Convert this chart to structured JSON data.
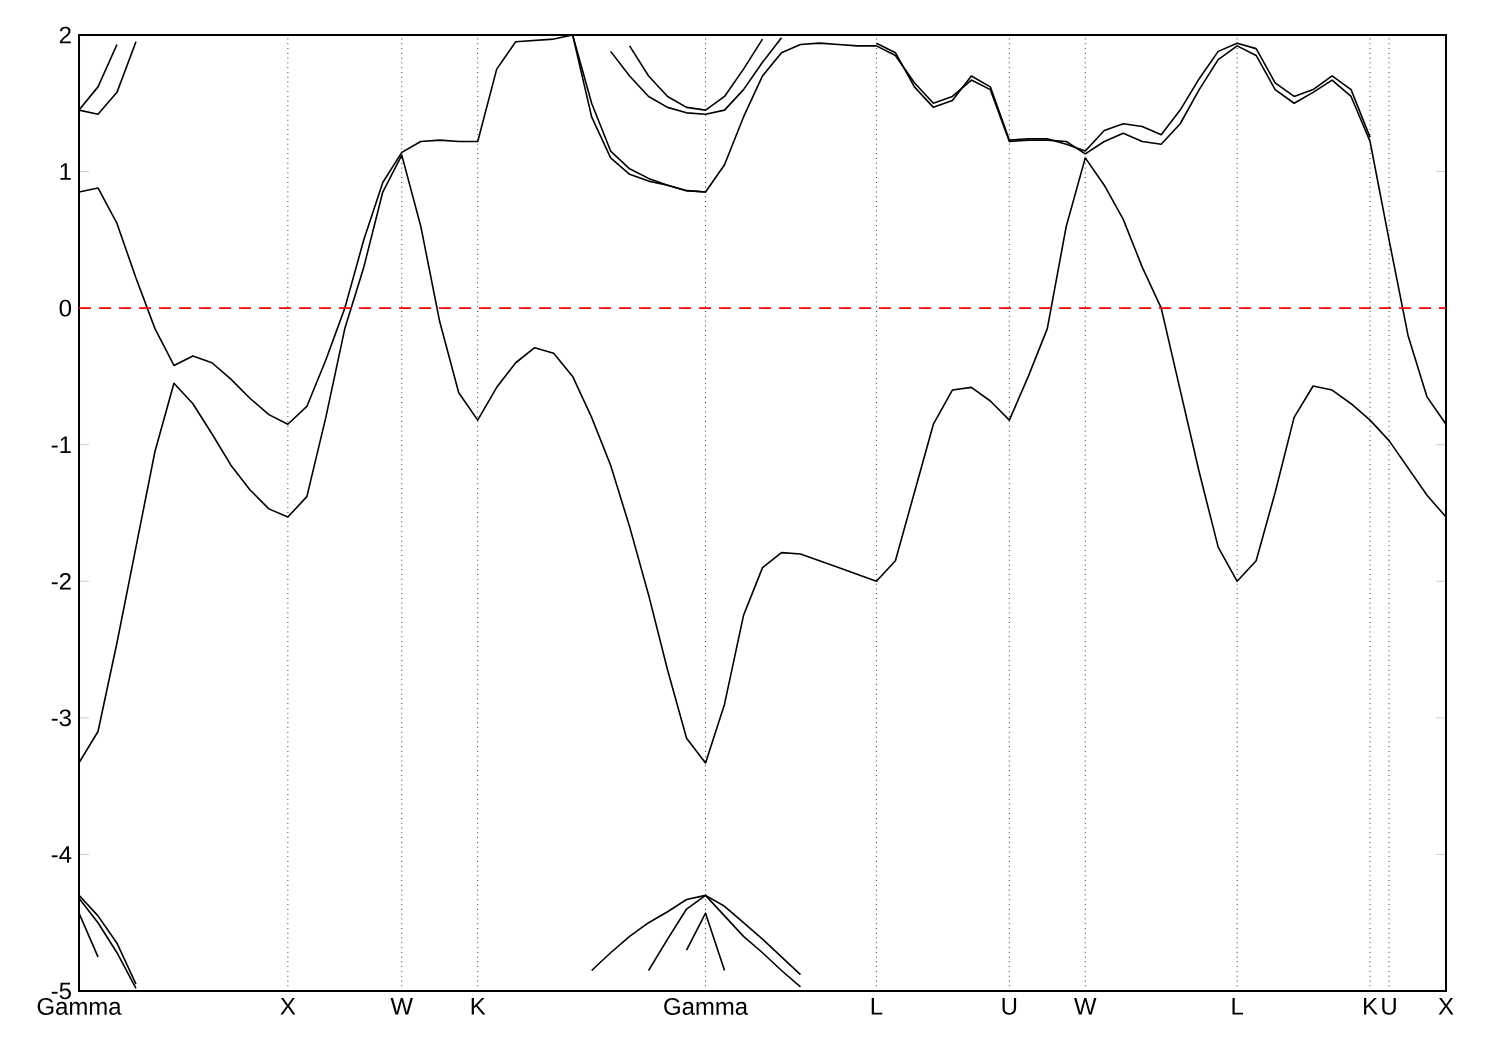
{
  "chart_data": {
    "type": "line",
    "ylim": [
      -5,
      2
    ],
    "categories": [
      "Gamma",
      null,
      null,
      null,
      null,
      null,
      null,
      null,
      null,
      null,
      null,
      "X",
      null,
      null,
      null,
      null,
      null,
      "W",
      null,
      null,
      null,
      "K",
      null,
      null,
      null,
      null,
      null,
      null,
      null,
      null,
      null,
      null,
      null,
      "Gamma",
      null,
      null,
      null,
      null,
      null,
      null,
      null,
      null,
      "L",
      null,
      null,
      null,
      null,
      null,
      null,
      "U",
      null,
      null,
      null,
      "W",
      null,
      null,
      null,
      null,
      null,
      null,
      null,
      "L",
      null,
      null,
      null,
      null,
      null,
      null,
      "K",
      "U",
      null,
      null,
      "X"
    ],
    "yticks": [
      -5,
      -4,
      -3,
      -2,
      -1,
      0,
      1,
      2
    ],
    "grid": "x",
    "ref_lines": [
      {
        "axis": "y",
        "value": 0,
        "color": "#ff0000",
        "line_style": "dashed"
      }
    ],
    "series": [
      {
        "color": "#000000",
        "values": [
          -3.33,
          -3.1,
          -2.45,
          -1.75,
          -1.05,
          -0.55,
          -0.7,
          -0.92,
          -1.15,
          -1.33,
          -1.47,
          -1.53,
          -1.38,
          -0.8,
          -0.15,
          0.3,
          0.85,
          1.12,
          0.6,
          -0.1,
          -0.62,
          -0.82,
          -0.58,
          -0.4,
          -0.29,
          -0.33,
          -0.5,
          -0.8,
          -1.15,
          -1.6,
          -2.1,
          -2.65,
          -3.15,
          -3.33,
          -2.9,
          -2.25,
          -1.9,
          -1.79,
          -1.8,
          -1.85,
          -1.9,
          -1.95,
          -2.0,
          -1.85,
          -1.35,
          -0.85,
          -0.6,
          -0.58,
          -0.68,
          -0.82,
          -0.5,
          -0.15,
          0.6,
          1.1,
          0.9,
          0.65,
          0.3,
          0.0,
          -0.6,
          -1.2,
          -1.75,
          -2.0,
          -1.85,
          -1.35,
          -0.8,
          -0.57,
          -0.6,
          -0.7,
          -0.82,
          -0.97,
          -1.17,
          -1.37,
          -1.53
        ]
      },
      {
        "color": "#000000",
        "values": [
          0.85,
          0.88,
          0.62,
          0.22,
          -0.15,
          -0.42,
          -0.35,
          -0.4,
          -0.52,
          -0.66,
          -0.78,
          -0.85,
          -0.72,
          -0.38,
          0.0,
          0.5,
          0.92,
          1.14,
          1.22,
          1.23,
          1.22,
          1.22,
          1.75,
          1.95,
          1.96,
          1.97,
          2.0,
          1.4,
          1.1,
          0.98,
          0.93,
          0.9,
          0.86,
          0.85,
          1.05,
          1.4,
          1.7,
          1.87,
          1.93,
          1.94,
          1.93,
          1.92,
          1.92,
          1.85,
          1.65,
          1.5,
          1.55,
          1.67,
          1.6,
          1.22,
          1.23,
          1.23,
          1.22,
          1.13,
          1.22,
          1.28,
          1.22,
          1.2,
          1.35,
          1.6,
          1.82,
          1.92,
          1.85,
          1.6,
          1.5,
          1.58,
          1.67,
          1.55,
          1.22,
          0.5,
          -0.2,
          -0.65,
          -0.85
        ]
      },
      {
        "color": "#000000",
        "values": [
          null,
          null,
          null,
          null,
          null,
          null,
          null,
          null,
          null,
          null,
          null,
          null,
          null,
          null,
          null,
          null,
          null,
          null,
          null,
          null,
          null,
          null,
          null,
          null,
          null,
          null,
          null,
          null,
          null,
          null,
          null,
          null,
          null,
          null,
          null,
          null,
          null,
          null,
          null,
          null,
          null,
          null,
          1.94,
          1.87,
          1.62,
          1.47,
          1.52,
          1.7,
          1.62,
          1.23,
          1.24,
          1.24,
          1.2,
          1.15,
          1.3,
          1.35,
          1.33,
          1.27,
          1.45,
          1.68,
          1.88,
          1.94,
          1.9,
          1.65,
          1.55,
          1.6,
          1.7,
          1.6,
          1.25,
          null,
          null,
          null,
          null
        ]
      },
      {
        "color": "#000000",
        "values": [
          1.45,
          1.62,
          1.93,
          null,
          null,
          null,
          null,
          null,
          null,
          null,
          null,
          null,
          null,
          null,
          null,
          null,
          null,
          null,
          null,
          null,
          null,
          null,
          null,
          null,
          null,
          null,
          null,
          null,
          null,
          null,
          null,
          null,
          null,
          null,
          null,
          null,
          null,
          null,
          null,
          null,
          null,
          null,
          null,
          null,
          null,
          null,
          null,
          null,
          null,
          null,
          null,
          null,
          null,
          null,
          null,
          null,
          null,
          null,
          null,
          null,
          null,
          null,
          null,
          null,
          null,
          null,
          null,
          null,
          null,
          null,
          null,
          null,
          null
        ]
      },
      {
        "color": "#000000",
        "values": [
          1.45,
          1.42,
          1.58,
          1.95,
          null,
          null,
          null,
          null,
          null,
          null,
          null,
          null,
          null,
          null,
          null,
          null,
          null,
          null,
          null,
          null,
          null,
          null,
          null,
          null,
          null,
          null,
          null,
          null,
          null,
          null,
          null,
          null,
          null,
          null,
          null,
          null,
          null,
          null,
          null,
          null,
          null,
          null,
          null,
          null,
          null,
          null,
          null,
          null,
          null,
          null,
          null,
          null,
          null,
          null,
          null,
          null,
          null,
          null,
          null,
          null,
          null,
          null,
          null,
          null,
          null,
          null,
          null,
          null,
          null,
          null,
          null,
          null,
          null
        ]
      },
      {
        "color": "#000000",
        "values": [
          null,
          null,
          null,
          null,
          null,
          null,
          null,
          null,
          null,
          null,
          null,
          null,
          null,
          null,
          null,
          null,
          null,
          null,
          null,
          null,
          null,
          null,
          null,
          null,
          null,
          null,
          2.0,
          1.5,
          1.15,
          1.02,
          0.95,
          0.9,
          0.86,
          0.85,
          null,
          null,
          null,
          null,
          null,
          null,
          null,
          null,
          null,
          null,
          null,
          null,
          null,
          null,
          null,
          null,
          null,
          null,
          null,
          null,
          null,
          null,
          null,
          null,
          null,
          null,
          null,
          null,
          null,
          null,
          null,
          null,
          null,
          null,
          null,
          null,
          null,
          null,
          null
        ]
      },
      {
        "color": "#000000",
        "values": [
          null,
          null,
          null,
          null,
          null,
          null,
          null,
          null,
          null,
          null,
          null,
          null,
          null,
          null,
          null,
          null,
          null,
          null,
          null,
          null,
          null,
          null,
          null,
          null,
          null,
          null,
          null,
          null,
          1.88,
          1.7,
          1.55,
          1.47,
          1.43,
          1.42,
          1.45,
          1.6,
          1.8,
          1.98,
          null,
          null,
          null,
          null,
          null,
          null,
          null,
          null,
          null,
          null,
          null,
          null,
          null,
          null,
          null,
          null,
          null,
          null,
          null,
          null,
          null,
          null,
          null,
          null,
          null,
          null,
          null,
          null,
          null,
          null,
          null,
          null,
          null,
          null,
          null
        ]
      },
      {
        "color": "#000000",
        "values": [
          null,
          null,
          null,
          null,
          null,
          null,
          null,
          null,
          null,
          null,
          null,
          null,
          null,
          null,
          null,
          null,
          null,
          null,
          null,
          null,
          null,
          null,
          null,
          null,
          null,
          null,
          null,
          null,
          null,
          1.92,
          1.7,
          1.55,
          1.47,
          1.45,
          1.55,
          1.75,
          1.97,
          null,
          null,
          null,
          null,
          null,
          null,
          null,
          null,
          null,
          null,
          null,
          null,
          null,
          null,
          null,
          null,
          null,
          null,
          null,
          null,
          null,
          null,
          null,
          null,
          null,
          null,
          null,
          null,
          null,
          null,
          null,
          null,
          null,
          null,
          null,
          null
        ]
      },
      {
        "color": "#000000",
        "values": [
          -4.3,
          -4.45,
          -4.65,
          -4.95,
          null,
          null,
          null,
          null,
          null,
          null,
          null,
          null,
          null,
          null,
          null,
          null,
          null,
          null,
          null,
          null,
          null,
          null,
          null,
          null,
          null,
          null,
          null,
          null,
          null,
          null,
          null,
          null,
          null,
          null,
          null,
          null,
          null,
          null,
          null,
          null,
          null,
          null,
          null,
          null,
          null,
          null,
          null,
          null,
          null,
          null,
          null,
          null,
          null,
          null,
          null,
          null,
          null,
          null,
          null,
          null,
          null,
          null,
          null,
          null,
          null,
          null,
          null,
          null,
          null,
          null,
          null,
          null,
          null
        ]
      },
      {
        "color": "#000000",
        "values": [
          -4.32,
          -4.5,
          -4.72,
          -4.98,
          null,
          null,
          null,
          null,
          null,
          null,
          null,
          null,
          null,
          null,
          null,
          null,
          null,
          null,
          null,
          null,
          null,
          null,
          null,
          null,
          null,
          null,
          null,
          null,
          null,
          null,
          null,
          null,
          null,
          null,
          null,
          null,
          null,
          null,
          null,
          null,
          null,
          null,
          null,
          null,
          null,
          null,
          null,
          null,
          null,
          null,
          null,
          null,
          null,
          null,
          null,
          null,
          null,
          null,
          null,
          null,
          null,
          null,
          null,
          null,
          null,
          null,
          null,
          null,
          null,
          null,
          null,
          null,
          null
        ]
      },
      {
        "color": "#000000",
        "values": [
          -4.43,
          -4.75,
          null,
          null,
          null,
          null,
          null,
          null,
          null,
          null,
          null,
          null,
          null,
          null,
          null,
          null,
          null,
          null,
          null,
          null,
          null,
          null,
          null,
          null,
          null,
          null,
          null,
          null,
          null,
          null,
          null,
          null,
          null,
          null,
          null,
          null,
          null,
          null,
          null,
          null,
          null,
          null,
          null,
          null,
          null,
          null,
          null,
          null,
          null,
          null,
          null,
          null,
          null,
          null,
          null,
          null,
          null,
          null,
          null,
          null,
          null,
          null,
          null,
          null,
          null,
          null,
          null,
          null,
          null,
          null,
          null,
          null,
          null
        ]
      },
      {
        "color": "#000000",
        "values": [
          null,
          null,
          null,
          null,
          null,
          null,
          null,
          null,
          null,
          null,
          null,
          null,
          null,
          null,
          null,
          null,
          null,
          null,
          null,
          null,
          null,
          null,
          null,
          null,
          null,
          null,
          null,
          -4.85,
          -4.72,
          -4.6,
          -4.5,
          -4.42,
          -4.33,
          -4.3,
          -4.38,
          -4.5,
          -4.62,
          -4.75,
          -4.88,
          null,
          null,
          null,
          null,
          null,
          null,
          null,
          null,
          null,
          null,
          null,
          null,
          null,
          null,
          null,
          null,
          null,
          null,
          null,
          null,
          null,
          null,
          null,
          null,
          null,
          null,
          null,
          null,
          null,
          null,
          null,
          null,
          null,
          null
        ]
      },
      {
        "color": "#000000",
        "values": [
          null,
          null,
          null,
          null,
          null,
          null,
          null,
          null,
          null,
          null,
          null,
          null,
          null,
          null,
          null,
          null,
          null,
          null,
          null,
          null,
          null,
          null,
          null,
          null,
          null,
          null,
          null,
          null,
          null,
          null,
          -4.85,
          -4.62,
          -4.4,
          -4.3,
          -4.45,
          -4.6,
          -4.72,
          -4.85,
          -4.97,
          null,
          null,
          null,
          null,
          null,
          null,
          null,
          null,
          null,
          null,
          null,
          null,
          null,
          null,
          null,
          null,
          null,
          null,
          null,
          null,
          null,
          null,
          null,
          null,
          null,
          null,
          null,
          null,
          null,
          null,
          null,
          null,
          null,
          null
        ]
      },
      {
        "color": "#000000",
        "values": [
          null,
          null,
          null,
          null,
          null,
          null,
          null,
          null,
          null,
          null,
          null,
          null,
          null,
          null,
          null,
          null,
          null,
          null,
          null,
          null,
          null,
          null,
          null,
          null,
          null,
          null,
          null,
          null,
          null,
          null,
          null,
          null,
          -4.7,
          -4.43,
          -4.85,
          null,
          null,
          null,
          null,
          null,
          null,
          null,
          null,
          null,
          null,
          null,
          null,
          null,
          null,
          null,
          null,
          null,
          null,
          null,
          null,
          null,
          null,
          null,
          null,
          null,
          null,
          null,
          null,
          null,
          null,
          null,
          null,
          null,
          null,
          null,
          null,
          null,
          null
        ]
      }
    ]
  }
}
